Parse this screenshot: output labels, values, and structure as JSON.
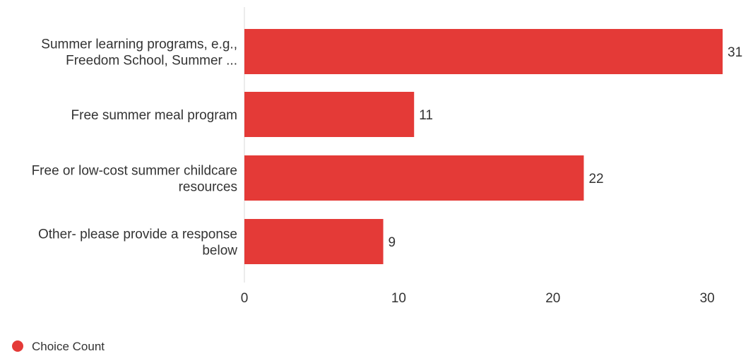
{
  "chart_data": {
    "type": "bar",
    "orientation": "horizontal",
    "categories": [
      [
        "Summer learning programs, e.g.,",
        "Freedom School, Summer ..."
      ],
      [
        "Free summer meal program"
      ],
      [
        "Free or low-cost summer childcare",
        "resources"
      ],
      [
        "Other- please provide a response",
        "below"
      ]
    ],
    "series": [
      {
        "name": "Choice Count",
        "values": [
          31,
          11,
          22,
          9
        ],
        "color": "#e43a37"
      }
    ],
    "xlim": [
      0,
      32
    ],
    "xticks": [
      0,
      10,
      20,
      30
    ],
    "grid": false,
    "legend_position": "bottom-left",
    "axis_color": "#e6e6e6"
  }
}
